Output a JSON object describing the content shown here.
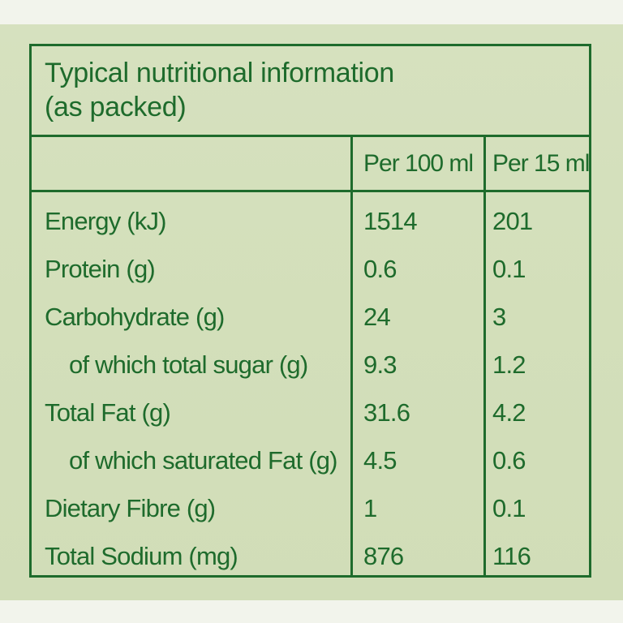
{
  "title_lines": [
    "Typical nutritional information",
    "(as packed)"
  ],
  "columns": [
    "Per 100 ml",
    "Per 15 ml"
  ],
  "colors": {
    "ink": "#1e6b2c",
    "panel": "#d4dfbb",
    "background": "#f2f4ec"
  },
  "rows": [
    {
      "name": "Energy (kJ)",
      "per_100ml": "1514",
      "per_15ml": "201",
      "indent": false
    },
    {
      "name": "Protein (g)",
      "per_100ml": "0.6",
      "per_15ml": "0.1",
      "indent": false
    },
    {
      "name": "Carbohydrate (g)",
      "per_100ml": "24",
      "per_15ml": "3",
      "indent": false
    },
    {
      "name": "of which total sugar (g)",
      "per_100ml": "9.3",
      "per_15ml": "1.2",
      "indent": true
    },
    {
      "name": "Total Fat (g)",
      "per_100ml": "31.6",
      "per_15ml": "4.2",
      "indent": false
    },
    {
      "name": "of which saturated Fat (g)",
      "per_100ml": "4.5",
      "per_15ml": "0.6",
      "indent": true
    },
    {
      "name": "Dietary Fibre (g)",
      "per_100ml": "1",
      "per_15ml": "0.1",
      "indent": false
    },
    {
      "name": "Total Sodium (mg)",
      "per_100ml": "876",
      "per_15ml": "116",
      "indent": false
    }
  ]
}
